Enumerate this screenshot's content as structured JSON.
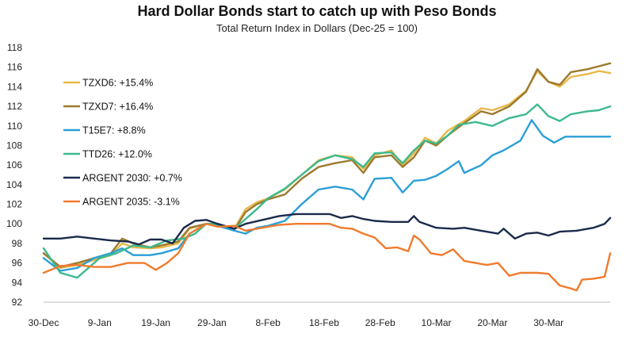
{
  "chart_data": {
    "type": "line",
    "title": "Hard Dollar Bonds start to catch up with Peso Bonds",
    "subtitle": "Total Return Index in Dollars (Dec-25 = 100)",
    "x_tick_labels": [
      "30-Dec",
      "9-Jan",
      "19-Jan",
      "29-Jan",
      "8-Feb",
      "18-Feb",
      "28-Feb",
      "10-Mar",
      "20-Mar",
      "30-Mar"
    ],
    "x_tick_days": [
      0,
      10,
      20,
      30,
      40,
      50,
      60,
      70,
      80,
      90
    ],
    "xlim_days": [
      0,
      101
    ],
    "ylim": [
      92,
      118
    ],
    "y_ticks": [
      92,
      94,
      96,
      98,
      100,
      102,
      104,
      106,
      108,
      110,
      112,
      114,
      116,
      118
    ],
    "grid": false,
    "legend_position": "left",
    "series": [
      {
        "name": "TZXD6: +15.4%",
        "color": "#e8b84a",
        "points": [
          [
            0,
            97.0
          ],
          [
            3,
            95.5
          ],
          [
            6,
            95.8
          ],
          [
            9,
            96.3
          ],
          [
            12,
            96.8
          ],
          [
            14,
            98.0
          ],
          [
            16,
            97.6
          ],
          [
            19,
            97.5
          ],
          [
            21,
            97.6
          ],
          [
            24,
            98.0
          ],
          [
            26,
            99.5
          ],
          [
            29,
            100.0
          ],
          [
            31,
            100.0
          ],
          [
            34,
            99.5
          ],
          [
            36,
            101.5
          ],
          [
            38,
            102.2
          ],
          [
            40,
            102.6
          ],
          [
            43,
            103.5
          ],
          [
            46,
            105.0
          ],
          [
            49,
            106.5
          ],
          [
            52,
            107.0
          ],
          [
            55,
            106.8
          ],
          [
            57,
            105.6
          ],
          [
            59,
            107.0
          ],
          [
            62,
            107.5
          ],
          [
            64,
            106.0
          ],
          [
            66,
            107.2
          ],
          [
            68,
            108.8
          ],
          [
            70,
            108.2
          ],
          [
            72,
            109.5
          ],
          [
            75,
            110.5
          ],
          [
            78,
            111.8
          ],
          [
            80,
            111.6
          ],
          [
            83,
            112.2
          ],
          [
            86,
            113.6
          ],
          [
            88,
            115.6
          ],
          [
            90,
            114.5
          ],
          [
            92,
            114.0
          ],
          [
            94,
            115.0
          ],
          [
            97,
            115.3
          ],
          [
            99,
            115.6
          ],
          [
            101,
            115.4
          ]
        ]
      },
      {
        "name": "TZXD7: +16.4%",
        "color": "#9c7a2e",
        "points": [
          [
            0,
            97.0
          ],
          [
            3,
            95.6
          ],
          [
            6,
            96.0
          ],
          [
            9,
            96.5
          ],
          [
            12,
            97.0
          ],
          [
            14,
            98.5
          ],
          [
            16,
            98.0
          ],
          [
            19,
            97.6
          ],
          [
            21,
            97.8
          ],
          [
            24,
            98.2
          ],
          [
            26,
            99.6
          ],
          [
            29,
            100.0
          ],
          [
            31,
            100.0
          ],
          [
            34,
            99.4
          ],
          [
            36,
            101.2
          ],
          [
            38,
            102.0
          ],
          [
            40,
            102.5
          ],
          [
            43,
            103.0
          ],
          [
            46,
            104.6
          ],
          [
            49,
            105.8
          ],
          [
            52,
            106.2
          ],
          [
            55,
            106.5
          ],
          [
            57,
            105.2
          ],
          [
            59,
            106.8
          ],
          [
            62,
            107.0
          ],
          [
            64,
            105.8
          ],
          [
            66,
            106.8
          ],
          [
            68,
            108.5
          ],
          [
            70,
            108.0
          ],
          [
            72,
            109.0
          ],
          [
            75,
            110.3
          ],
          [
            78,
            111.5
          ],
          [
            80,
            111.2
          ],
          [
            83,
            112.0
          ],
          [
            86,
            113.5
          ],
          [
            88,
            115.8
          ],
          [
            90,
            114.5
          ],
          [
            92,
            114.2
          ],
          [
            94,
            115.5
          ],
          [
            97,
            115.8
          ],
          [
            99,
            116.1
          ],
          [
            101,
            116.4
          ]
        ]
      },
      {
        "name": "T15E7: +8.8%",
        "color": "#2a9fd6",
        "points": [
          [
            0,
            96.5
          ],
          [
            3,
            95.2
          ],
          [
            6,
            95.5
          ],
          [
            9,
            96.5
          ],
          [
            12,
            97.0
          ],
          [
            14,
            97.5
          ],
          [
            16,
            96.8
          ],
          [
            19,
            96.8
          ],
          [
            21,
            97.0
          ],
          [
            24,
            97.5
          ],
          [
            26,
            99.0
          ],
          [
            29,
            100.0
          ],
          [
            31,
            99.8
          ],
          [
            34,
            99.3
          ],
          [
            36,
            99.0
          ],
          [
            38,
            99.6
          ],
          [
            40,
            99.8
          ],
          [
            43,
            100.3
          ],
          [
            46,
            102.0
          ],
          [
            49,
            103.5
          ],
          [
            52,
            103.8
          ],
          [
            55,
            103.5
          ],
          [
            57,
            102.5
          ],
          [
            59,
            104.6
          ],
          [
            62,
            104.7
          ],
          [
            64,
            103.2
          ],
          [
            66,
            104.4
          ],
          [
            68,
            104.5
          ],
          [
            70,
            104.9
          ],
          [
            72,
            105.6
          ],
          [
            74,
            106.4
          ],
          [
            75,
            105.2
          ],
          [
            78,
            106.0
          ],
          [
            80,
            107.0
          ],
          [
            82,
            107.5
          ],
          [
            85,
            108.5
          ],
          [
            87,
            110.6
          ],
          [
            89,
            109.0
          ],
          [
            91,
            108.3
          ],
          [
            93,
            108.9
          ],
          [
            96,
            108.9
          ],
          [
            99,
            108.9
          ],
          [
            101,
            108.9
          ]
        ]
      },
      {
        "name": "TTD26: +12.0%",
        "color": "#3cb98d",
        "points": [
          [
            0,
            97.5
          ],
          [
            3,
            95.0
          ],
          [
            6,
            94.5
          ],
          [
            8,
            95.5
          ],
          [
            10,
            96.5
          ],
          [
            13,
            97.0
          ],
          [
            16,
            97.8
          ],
          [
            19,
            97.6
          ],
          [
            22,
            98.3
          ],
          [
            25,
            98.5
          ],
          [
            27,
            99.0
          ],
          [
            29,
            100.0
          ],
          [
            31,
            100.0
          ],
          [
            34,
            99.5
          ],
          [
            36,
            100.5
          ],
          [
            38,
            101.5
          ],
          [
            40,
            102.6
          ],
          [
            43,
            103.6
          ],
          [
            46,
            105.0
          ],
          [
            49,
            106.4
          ],
          [
            52,
            107.0
          ],
          [
            55,
            106.6
          ],
          [
            57,
            105.8
          ],
          [
            59,
            107.2
          ],
          [
            62,
            107.3
          ],
          [
            64,
            106.2
          ],
          [
            66,
            107.5
          ],
          [
            68,
            108.5
          ],
          [
            70,
            108.2
          ],
          [
            72,
            109.0
          ],
          [
            74,
            110.1
          ],
          [
            77,
            110.4
          ],
          [
            80,
            110.0
          ],
          [
            83,
            110.8
          ],
          [
            86,
            111.2
          ],
          [
            88,
            112.2
          ],
          [
            90,
            111.0
          ],
          [
            92,
            110.5
          ],
          [
            94,
            111.2
          ],
          [
            97,
            111.5
          ],
          [
            99,
            111.6
          ],
          [
            101,
            112.0
          ]
        ]
      },
      {
        "name": "ARGENT 2030: +0.7%",
        "color": "#1b2a4a",
        "points": [
          [
            0,
            98.5
          ],
          [
            3,
            98.5
          ],
          [
            6,
            98.7
          ],
          [
            9,
            98.5
          ],
          [
            12,
            98.3
          ],
          [
            15,
            98.2
          ],
          [
            17,
            97.9
          ],
          [
            19,
            98.4
          ],
          [
            21,
            98.4
          ],
          [
            23,
            98.0
          ],
          [
            25,
            99.6
          ],
          [
            27,
            100.3
          ],
          [
            29,
            100.4
          ],
          [
            31,
            100.0
          ],
          [
            34,
            99.5
          ],
          [
            36,
            100.0
          ],
          [
            39,
            100.4
          ],
          [
            42,
            100.8
          ],
          [
            45,
            101.0
          ],
          [
            48,
            101.0
          ],
          [
            51,
            101.0
          ],
          [
            53,
            100.6
          ],
          [
            55,
            100.8
          ],
          [
            57,
            100.5
          ],
          [
            59,
            100.3
          ],
          [
            62,
            100.2
          ],
          [
            65,
            100.2
          ],
          [
            66,
            100.8
          ],
          [
            67,
            100.2
          ],
          [
            70,
            99.6
          ],
          [
            73,
            99.5
          ],
          [
            75,
            99.6
          ],
          [
            78,
            99.3
          ],
          [
            81,
            99.0
          ],
          [
            82,
            99.5
          ],
          [
            84,
            98.5
          ],
          [
            86,
            99.0
          ],
          [
            88,
            99.1
          ],
          [
            90,
            98.8
          ],
          [
            92,
            99.2
          ],
          [
            95,
            99.3
          ],
          [
            98,
            99.6
          ],
          [
            100,
            100.0
          ],
          [
            101,
            100.6
          ]
        ]
      },
      {
        "name": "ARGENT 2035: -3.1%",
        "color": "#f07b2e",
        "points": [
          [
            0,
            95.0
          ],
          [
            3,
            95.7
          ],
          [
            6,
            95.8
          ],
          [
            9,
            95.6
          ],
          [
            12,
            95.6
          ],
          [
            15,
            96.0
          ],
          [
            18,
            96.0
          ],
          [
            20,
            95.3
          ],
          [
            22,
            96.0
          ],
          [
            24,
            97.0
          ],
          [
            26,
            99.0
          ],
          [
            29,
            100.0
          ],
          [
            31,
            99.7
          ],
          [
            34,
            99.8
          ],
          [
            36,
            99.3
          ],
          [
            39,
            99.6
          ],
          [
            42,
            99.9
          ],
          [
            45,
            100.0
          ],
          [
            48,
            100.0
          ],
          [
            51,
            100.0
          ],
          [
            53,
            99.6
          ],
          [
            55,
            99.5
          ],
          [
            57,
            99.0
          ],
          [
            59,
            98.6
          ],
          [
            61,
            97.5
          ],
          [
            63,
            97.6
          ],
          [
            65,
            97.2
          ],
          [
            66,
            98.8
          ],
          [
            67,
            98.4
          ],
          [
            69,
            97.0
          ],
          [
            71,
            96.8
          ],
          [
            73,
            97.4
          ],
          [
            75,
            96.2
          ],
          [
            77,
            96.0
          ],
          [
            79,
            95.8
          ],
          [
            81,
            96.0
          ],
          [
            83,
            94.7
          ],
          [
            85,
            95.0
          ],
          [
            88,
            95.0
          ],
          [
            90,
            94.9
          ],
          [
            92,
            93.7
          ],
          [
            94,
            93.4
          ],
          [
            95,
            93.2
          ],
          [
            96,
            94.3
          ],
          [
            98,
            94.4
          ],
          [
            100,
            94.6
          ],
          [
            101,
            97.0
          ]
        ]
      }
    ]
  }
}
